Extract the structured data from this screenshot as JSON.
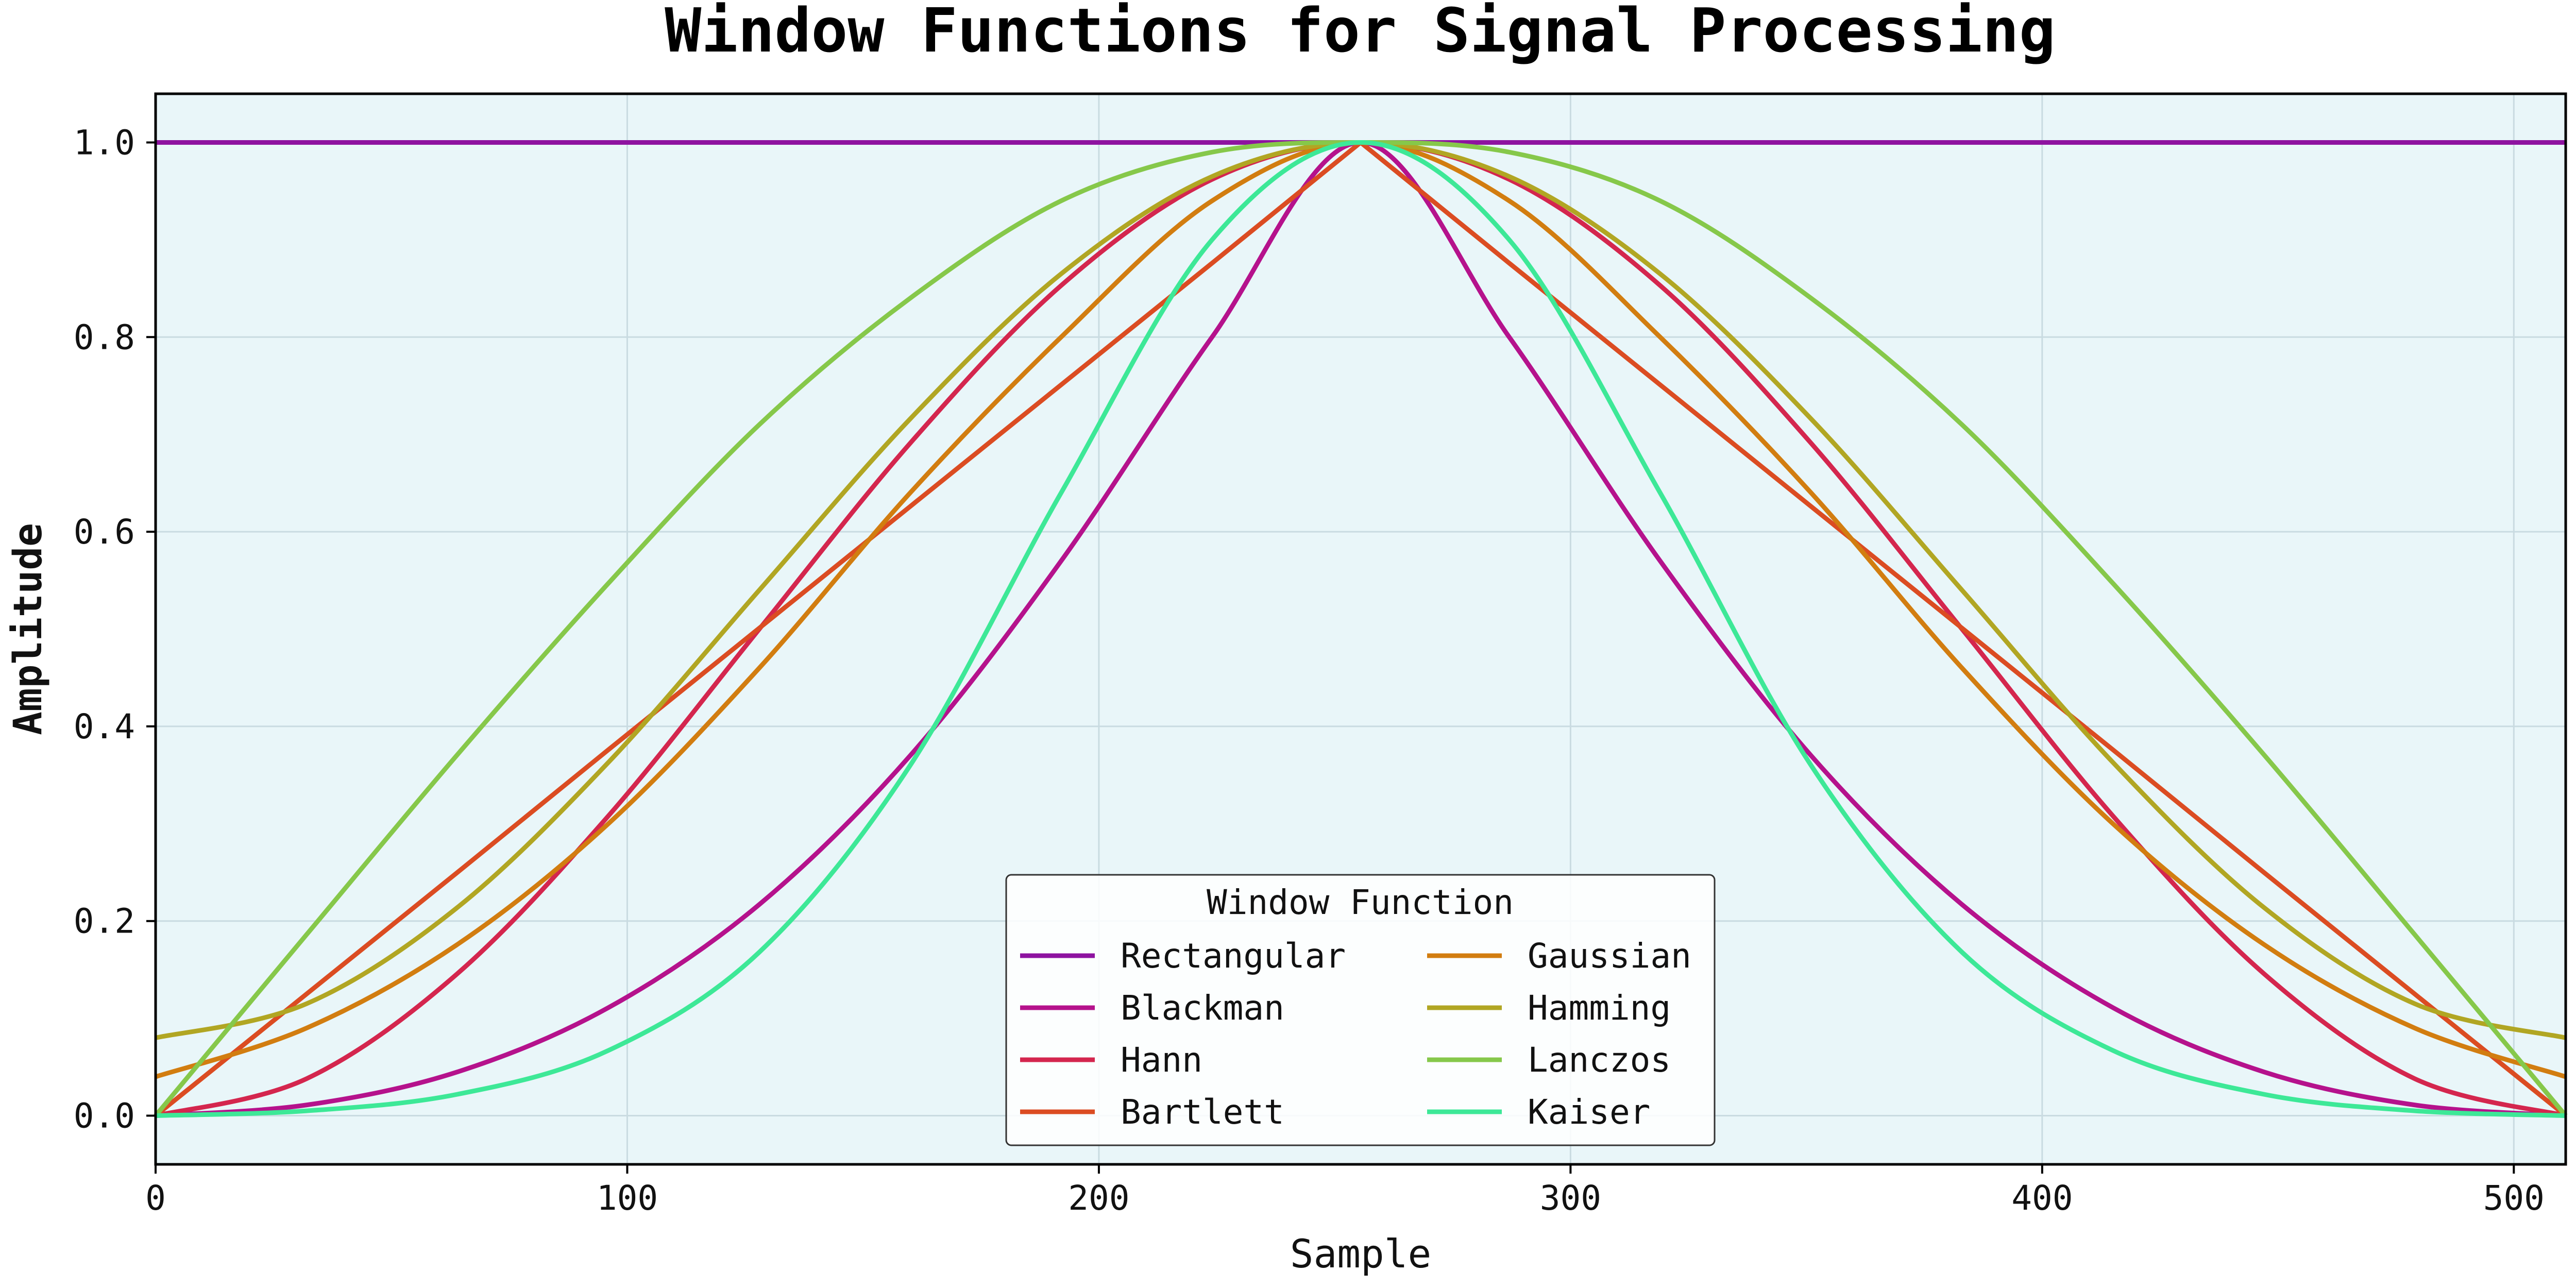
{
  "chart_data": {
    "type": "line",
    "title": "Window Functions for Signal Processing",
    "xlabel": "Sample",
    "ylabel": "Amplitude",
    "xlim": [
      0,
      511
    ],
    "ylim": [
      -0.05,
      1.05
    ],
    "xticks": [
      0,
      100,
      200,
      300,
      400,
      500
    ],
    "yticks": [
      0.0,
      0.2,
      0.4,
      0.6,
      0.8,
      1.0
    ],
    "grid": true,
    "plot_background": "#e9f6f9",
    "legend": {
      "title": "Window Function",
      "placement": "lower-center",
      "columns": 2
    },
    "x": [
      0,
      32,
      64,
      96,
      128,
      160,
      192,
      224,
      255.5,
      287,
      319,
      351,
      383,
      415,
      447,
      479,
      511
    ],
    "series": [
      {
        "name": "Rectangular",
        "color": "#8e13a0",
        "values": [
          1.0,
          1.0,
          1.0,
          1.0,
          1.0,
          1.0,
          1.0,
          1.0,
          1.0,
          1.0,
          1.0,
          1.0,
          1.0,
          1.0,
          1.0,
          1.0,
          1.0
        ]
      },
      {
        "name": "Blackman",
        "color": "#b5128c",
        "values": [
          0.0,
          0.011,
          0.045,
          0.111,
          0.217,
          0.37,
          0.57,
          0.8,
          1.0,
          0.8,
          0.57,
          0.37,
          0.217,
          0.111,
          0.045,
          0.011,
          0.0
        ]
      },
      {
        "name": "Hann",
        "color": "#d4264e",
        "values": [
          0.0,
          0.038,
          0.146,
          0.308,
          0.5,
          0.691,
          0.853,
          0.962,
          1.0,
          0.962,
          0.853,
          0.691,
          0.5,
          0.308,
          0.146,
          0.038,
          0.0
        ]
      },
      {
        "name": "Bartlett",
        "color": "#db4c22",
        "values": [
          0.0,
          0.125,
          0.25,
          0.376,
          0.501,
          0.626,
          0.751,
          0.876,
          1.0,
          0.876,
          0.751,
          0.626,
          0.501,
          0.376,
          0.25,
          0.125,
          0.0
        ]
      },
      {
        "name": "Gaussian",
        "color": "#d27d10",
        "values": [
          0.04,
          0.09,
          0.176,
          0.3,
          0.46,
          0.64,
          0.8,
          0.94,
          1.0,
          0.94,
          0.8,
          0.64,
          0.46,
          0.3,
          0.176,
          0.09,
          0.04
        ]
      },
      {
        "name": "Hamming",
        "color": "#b1a623",
        "values": [
          0.08,
          0.115,
          0.214,
          0.363,
          0.54,
          0.716,
          0.865,
          0.965,
          1.0,
          0.965,
          0.865,
          0.716,
          0.54,
          0.363,
          0.214,
          0.115,
          0.08
        ]
      },
      {
        "name": "Lanczos",
        "color": "#86c84a",
        "values": [
          0.0,
          0.186,
          0.371,
          0.547,
          0.71,
          0.84,
          0.94,
          0.99,
          1.0,
          0.99,
          0.94,
          0.84,
          0.71,
          0.547,
          0.371,
          0.186,
          0.0
        ]
      },
      {
        "name": "Kaiser",
        "color": "#3de897",
        "values": [
          0.0,
          0.005,
          0.022,
          0.067,
          0.168,
          0.36,
          0.64,
          0.9,
          1.0,
          0.9,
          0.64,
          0.36,
          0.168,
          0.067,
          0.022,
          0.005,
          0.0
        ]
      }
    ]
  }
}
